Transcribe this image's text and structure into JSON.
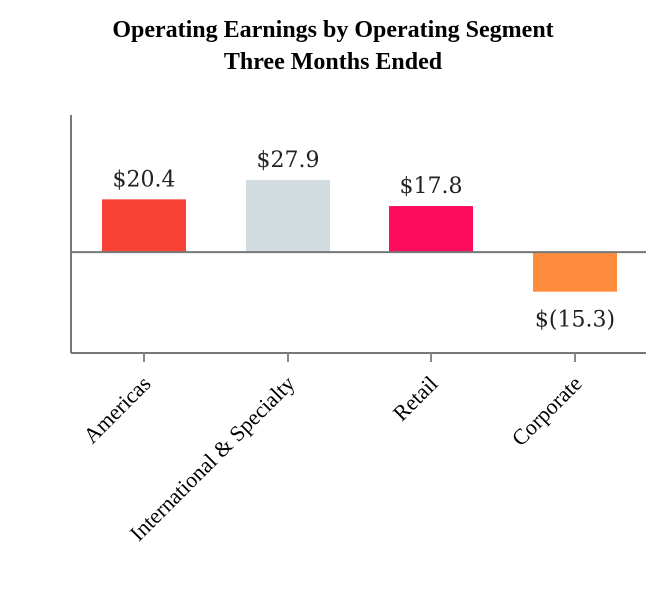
{
  "chart_data": {
    "type": "bar",
    "title": [
      "Operating Earnings by Operating Segment",
      "Three Months Ended"
    ],
    "categories": [
      "Americas",
      "International & Specialty",
      "Retail",
      "Corporate"
    ],
    "values": [
      20.4,
      27.9,
      17.8,
      -15.3
    ],
    "data_labels": [
      "$20.4",
      "$27.9",
      "$17.8",
      "$(15.3)"
    ],
    "colors": [
      "#f94336",
      "#d2dbe0",
      "#ff0b5e",
      "#ff8c3c"
    ],
    "xlabel": "",
    "ylabel": "",
    "ylim": [
      -39,
      53
    ],
    "grid": false,
    "legend": "none"
  }
}
